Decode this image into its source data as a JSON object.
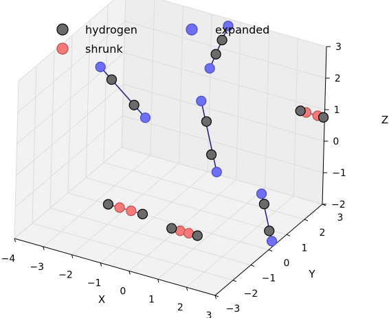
{
  "chart_data": {
    "type": "scatter",
    "projection": "3d",
    "xlabel": "X",
    "ylabel": "Y",
    "zlabel": "Z",
    "xlim": [
      -4,
      3
    ],
    "ylim": [
      -3,
      3
    ],
    "zlim": [
      -2,
      3
    ],
    "xticks": [
      "−4",
      "−3",
      "−2",
      "−1",
      "0",
      "1",
      "2",
      "3"
    ],
    "yticks": [
      "−3",
      "−2",
      "−1",
      "0",
      "1",
      "2",
      "3"
    ],
    "zticks": [
      "−2",
      "−1",
      "0",
      "1",
      "2",
      "3"
    ],
    "grid": true,
    "legend_position": "top",
    "series": [
      {
        "name": "hydrogen",
        "color": "#6b6b6b"
      },
      {
        "name": "expanded",
        "color": "#6f6ff5"
      },
      {
        "name": "shrunk",
        "color": "#f47a7a"
      }
    ],
    "molecules": [
      {
        "kind": "shrunk",
        "hydrogen": [
          [
            -2.6,
            0.0,
            -2.0
          ],
          [
            -1.4,
            0.0,
            -2.0
          ]
        ],
        "variant": [
          [
            -2.2,
            0.0,
            -2.0
          ],
          [
            -1.8,
            0.0,
            -2.0
          ]
        ]
      },
      {
        "kind": "shrunk",
        "hydrogen": [
          [
            -0.2,
            -0.3,
            -2.0
          ],
          [
            0.7,
            -0.3,
            -2.0
          ]
        ],
        "variant": [
          [
            0.1,
            -0.3,
            -2.0
          ],
          [
            0.4,
            -0.3,
            -2.0
          ]
        ]
      },
      {
        "kind": "shrunk",
        "hydrogen": [
          [
            2.4,
            2.6,
            1.0
          ],
          [
            3.2,
            2.6,
            1.0
          ]
        ],
        "variant": [
          [
            2.6,
            2.6,
            1.0
          ],
          [
            3.0,
            2.6,
            1.0
          ]
        ]
      },
      {
        "kind": "expanded",
        "hydrogen": [
          [
            -3.5,
            1.5,
            1.0
          ],
          [
            -2.7,
            1.5,
            0.4
          ]
        ],
        "variant": [
          [
            -3.9,
            1.5,
            1.3
          ],
          [
            -2.3,
            1.5,
            0.1
          ]
        ]
      },
      {
        "kind": "expanded",
        "hydrogen": [
          [
            -0.3,
            1.7,
            0.4
          ],
          [
            -0.1,
            1.7,
            -0.6
          ]
        ],
        "variant": [
          [
            -0.5,
            1.7,
            1.0
          ],
          [
            0.1,
            1.7,
            -1.1
          ]
        ]
      },
      {
        "kind": "expanded",
        "hydrogen": [
          [
            -0.5,
            2.8,
            2.4
          ],
          [
            -0.7,
            2.8,
            1.9
          ]
        ],
        "variant": [
          [
            -0.3,
            2.8,
            2.9
          ],
          [
            -0.9,
            2.8,
            1.4
          ]
        ]
      },
      {
        "kind": "expanded",
        "hydrogen": [
          [
            2.8,
            0.0,
            -0.6
          ],
          [
            3.0,
            0.0,
            -1.4
          ]
        ],
        "variant": [
          [
            2.7,
            0.0,
            -0.3
          ],
          [
            3.1,
            0.0,
            -1.7
          ]
        ]
      }
    ]
  }
}
